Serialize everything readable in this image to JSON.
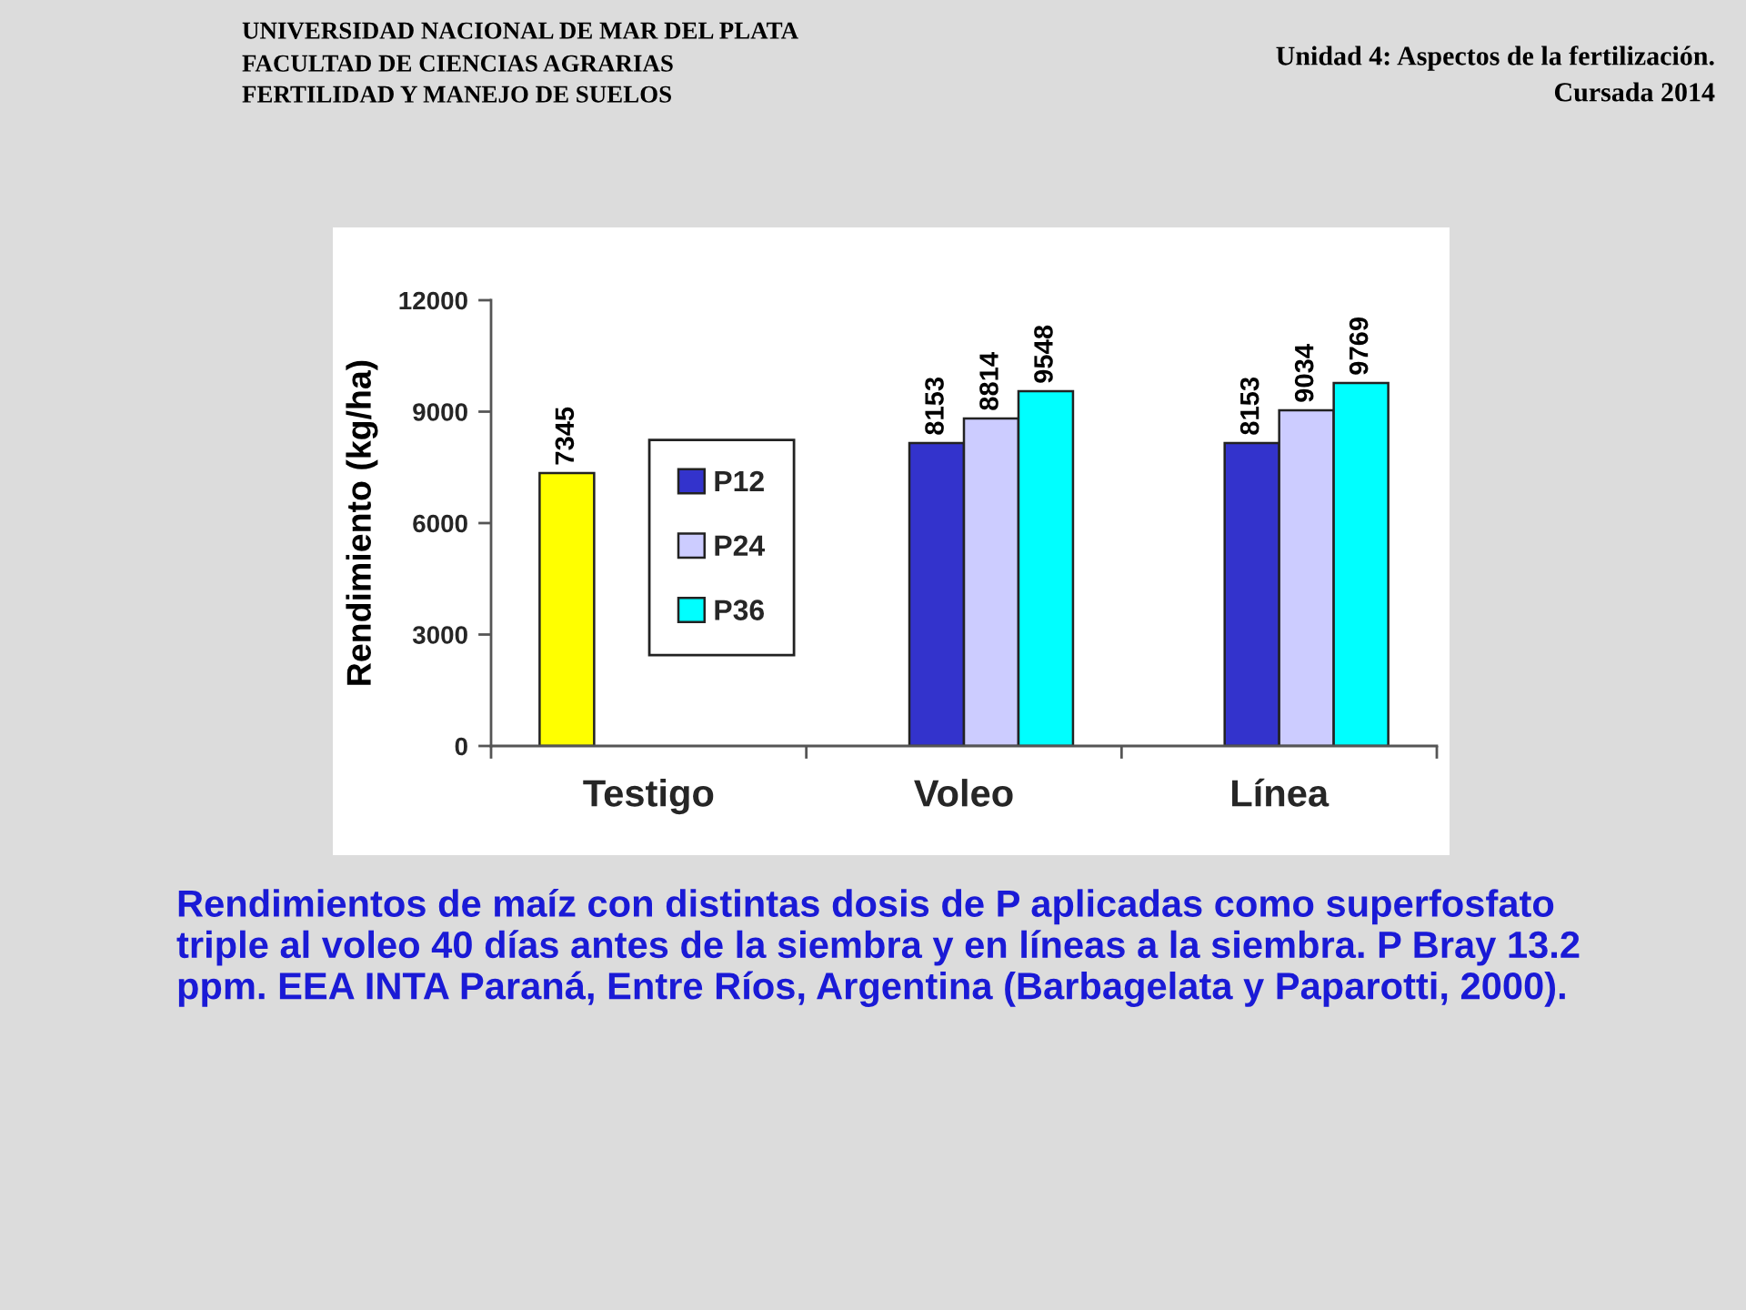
{
  "chart_data": {
    "type": "bar",
    "categories": [
      "Testigo",
      "Voleo",
      "Línea"
    ],
    "ylabel": "Rendimiento (kg/ha)",
    "series": [
      {
        "color": "#ffff00",
        "values": [
          7345,
          null,
          null
        ]
      },
      {
        "name": "P12",
        "color": "#3333cc",
        "values": [
          null,
          8153,
          8153
        ]
      },
      {
        "name": "P24",
        "color": "#ccccff",
        "values": [
          null,
          8814,
          9034
        ]
      },
      {
        "name": "P36",
        "color": "#00ffff",
        "values": [
          null,
          9548,
          9769
        ]
      }
    ],
    "ylim": [
      0,
      12000
    ],
    "yticks": [
      0,
      3000,
      6000,
      9000,
      12000
    ],
    "data_labels": true,
    "legend": "center left",
    "annotations": [
      "UNIVERSIDAD NACIONAL DE MAR DEL PLATA",
      "FACULTAD DE CIENCIAS AGRARIAS",
      "FERTILIDAD Y MANEJO DE SUELOS",
      "Unidad 4: Aspectos de la fertilización.",
      "Cursada 2014",
      "Rendimientos de maíz con distintas dosis de P aplicadas como superfosfato\ntriple al voleo 40 días antes de la siembra y en líneas a la siembra. P Bray 13.2\nppm. EEA INTA Paraná, Entre Ríos, Argentina (Barbagelata y Paparotti, 2000)."
    ]
  }
}
